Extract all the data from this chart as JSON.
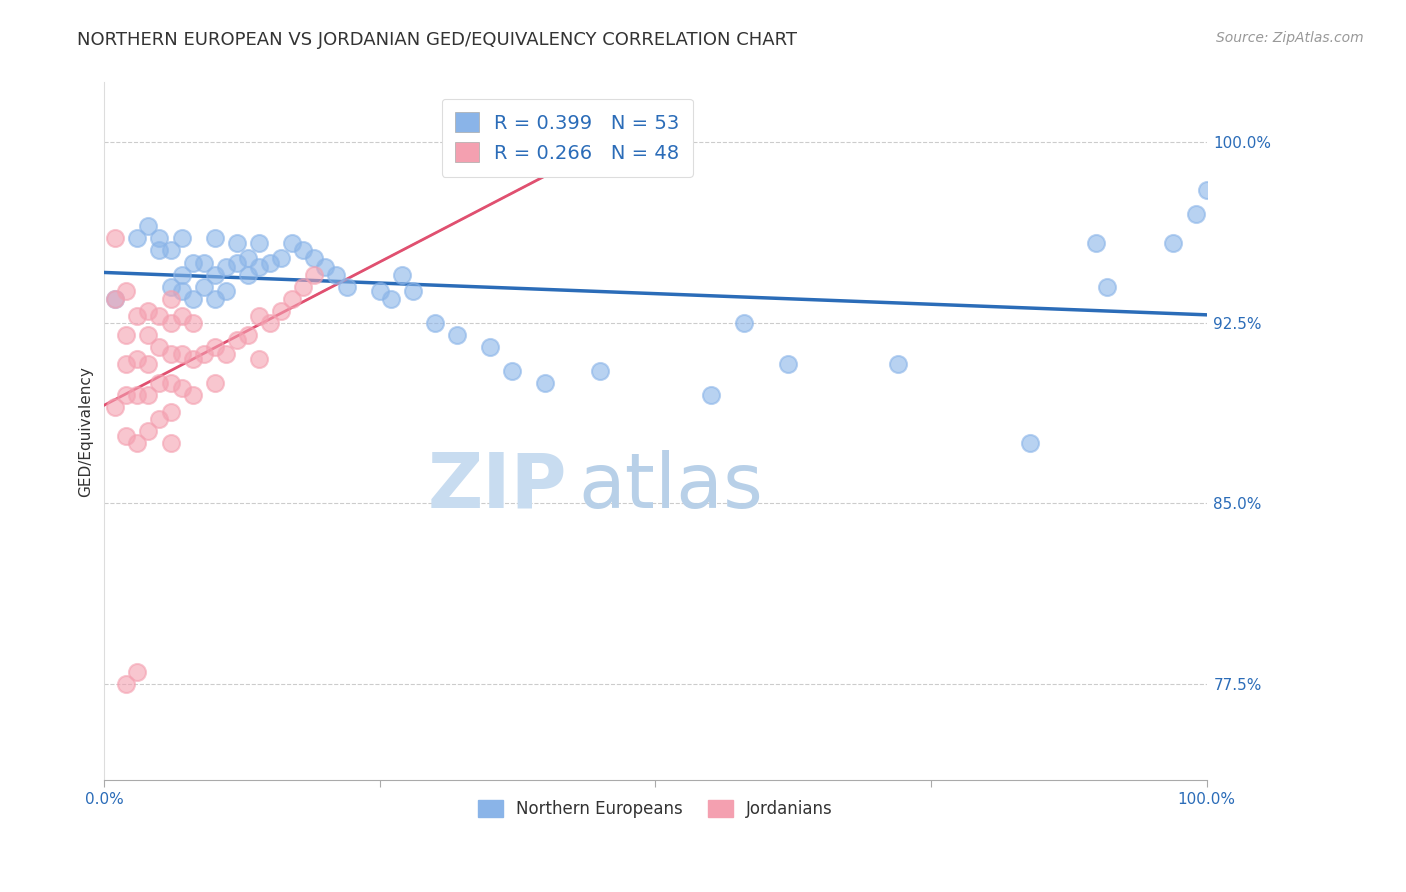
{
  "title": "NORTHERN EUROPEAN VS JORDANIAN GED/EQUIVALENCY CORRELATION CHART",
  "source_text": "Source: ZipAtlas.com",
  "ylabel": "GED/Equivalency",
  "watermark_zip": "ZIP",
  "watermark_atlas": "atlas",
  "xlim": [
    0.0,
    1.0
  ],
  "ylim": [
    0.735,
    1.025
  ],
  "yticks": [
    0.775,
    0.85,
    0.925,
    1.0
  ],
  "ytick_labels": [
    "77.5%",
    "85.0%",
    "92.5%",
    "100.0%"
  ],
  "xticks": [
    0.0,
    0.25,
    0.5,
    0.75,
    1.0
  ],
  "xtick_labels": [
    "0.0%",
    "",
    "",
    "",
    "100.0%"
  ],
  "blue_R": 0.399,
  "blue_N": 53,
  "pink_R": 0.266,
  "pink_N": 48,
  "blue_color": "#8AB4E8",
  "pink_color": "#F4A0B0",
  "blue_line_color": "#2B6CB8",
  "pink_line_color": "#E05070",
  "legend_label_blue": "Northern Europeans",
  "legend_label_pink": "Jordanians",
  "blue_scatter_x": [
    0.01,
    0.03,
    0.04,
    0.05,
    0.05,
    0.06,
    0.06,
    0.07,
    0.07,
    0.07,
    0.08,
    0.08,
    0.09,
    0.09,
    0.1,
    0.1,
    0.1,
    0.11,
    0.11,
    0.12,
    0.12,
    0.13,
    0.13,
    0.14,
    0.14,
    0.15,
    0.16,
    0.17,
    0.18,
    0.19,
    0.2,
    0.21,
    0.22,
    0.25,
    0.26,
    0.27,
    0.28,
    0.3,
    0.32,
    0.35,
    0.37,
    0.4,
    0.45,
    0.55,
    0.58,
    0.62,
    0.72,
    0.84,
    0.9,
    0.91,
    0.97,
    0.99,
    1.0
  ],
  "blue_scatter_y": [
    0.935,
    0.96,
    0.965,
    0.955,
    0.96,
    0.94,
    0.955,
    0.938,
    0.945,
    0.96,
    0.935,
    0.95,
    0.94,
    0.95,
    0.935,
    0.945,
    0.96,
    0.938,
    0.948,
    0.95,
    0.958,
    0.945,
    0.952,
    0.948,
    0.958,
    0.95,
    0.952,
    0.958,
    0.955,
    0.952,
    0.948,
    0.945,
    0.94,
    0.938,
    0.935,
    0.945,
    0.938,
    0.925,
    0.92,
    0.915,
    0.905,
    0.9,
    0.905,
    0.895,
    0.925,
    0.908,
    0.908,
    0.875,
    0.958,
    0.94,
    0.958,
    0.97,
    0.98
  ],
  "pink_scatter_x": [
    0.01,
    0.01,
    0.01,
    0.02,
    0.02,
    0.02,
    0.02,
    0.02,
    0.03,
    0.03,
    0.03,
    0.03,
    0.04,
    0.04,
    0.04,
    0.04,
    0.04,
    0.05,
    0.05,
    0.05,
    0.05,
    0.06,
    0.06,
    0.06,
    0.06,
    0.06,
    0.06,
    0.07,
    0.07,
    0.07,
    0.08,
    0.08,
    0.08,
    0.09,
    0.1,
    0.1,
    0.11,
    0.12,
    0.13,
    0.14,
    0.14,
    0.15,
    0.16,
    0.17,
    0.18,
    0.19,
    0.02,
    0.03
  ],
  "pink_scatter_y": [
    0.935,
    0.96,
    0.89,
    0.938,
    0.92,
    0.908,
    0.895,
    0.878,
    0.928,
    0.91,
    0.895,
    0.875,
    0.93,
    0.92,
    0.908,
    0.895,
    0.88,
    0.928,
    0.915,
    0.9,
    0.885,
    0.935,
    0.925,
    0.912,
    0.9,
    0.888,
    0.875,
    0.928,
    0.912,
    0.898,
    0.925,
    0.91,
    0.895,
    0.912,
    0.915,
    0.9,
    0.912,
    0.918,
    0.92,
    0.928,
    0.91,
    0.925,
    0.93,
    0.935,
    0.94,
    0.945,
    0.775,
    0.78
  ],
  "title_fontsize": 13,
  "axis_label_fontsize": 11,
  "tick_fontsize": 11,
  "source_fontsize": 10,
  "watermark_fontsize_zip": 55,
  "watermark_fontsize_atlas": 55,
  "watermark_color_zip": "#C8DCF0",
  "watermark_color_atlas": "#B8D0E8",
  "legend_text_color": "#2B6CB8",
  "axis_color": "#2B6CB8",
  "grid_color": "#CCCCCC",
  "title_color": "#333333"
}
